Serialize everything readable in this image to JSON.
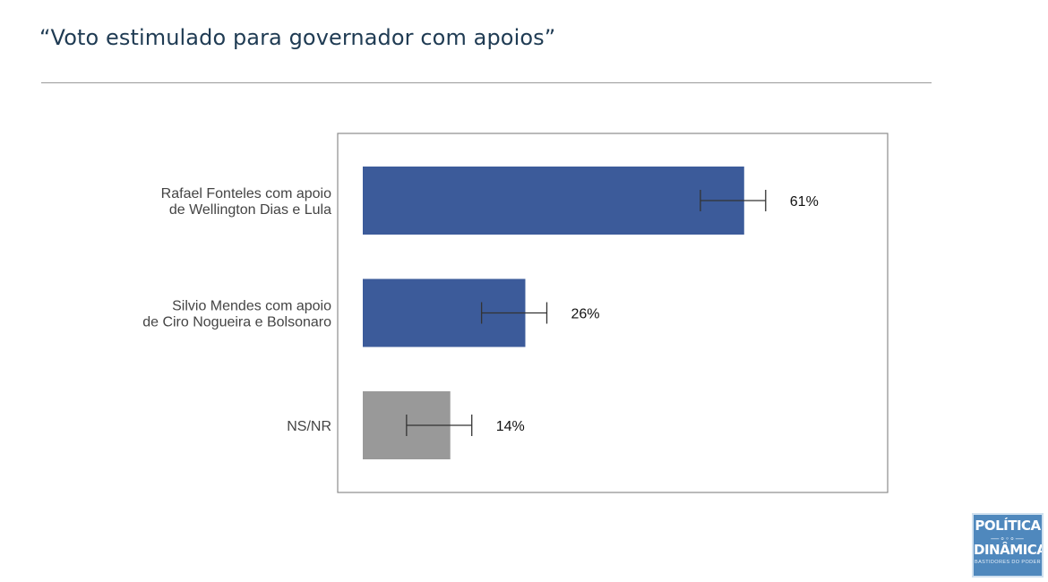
{
  "title": "“Voto estimulado para governador com apoios”",
  "chart_data": {
    "type": "bar",
    "orientation": "horizontal",
    "xlim": [
      0,
      100
    ],
    "grid": false,
    "categories": [
      [
        "Rafael Fonteles com apoio",
        "de Wellington Dias e Lula"
      ],
      [
        "Silvio Mendes com apoio",
        "de Ciro Nogueira e Bolsonaro"
      ],
      [
        "NS/NR"
      ]
    ],
    "values": [
      61,
      26,
      14
    ],
    "value_labels": [
      "61%",
      "26%",
      "14%"
    ],
    "error_low": [
      54,
      19,
      7
    ],
    "error_high": [
      61,
      26,
      14
    ],
    "colors": [
      "#3c5b9a",
      "#3c5b9a",
      "#999999"
    ],
    "error_bar_color": "#333333"
  },
  "logo": {
    "line1": "POLÍTICA",
    "line2": "DINÂMICA",
    "tagline": "BASTIDORES DO PODER"
  }
}
